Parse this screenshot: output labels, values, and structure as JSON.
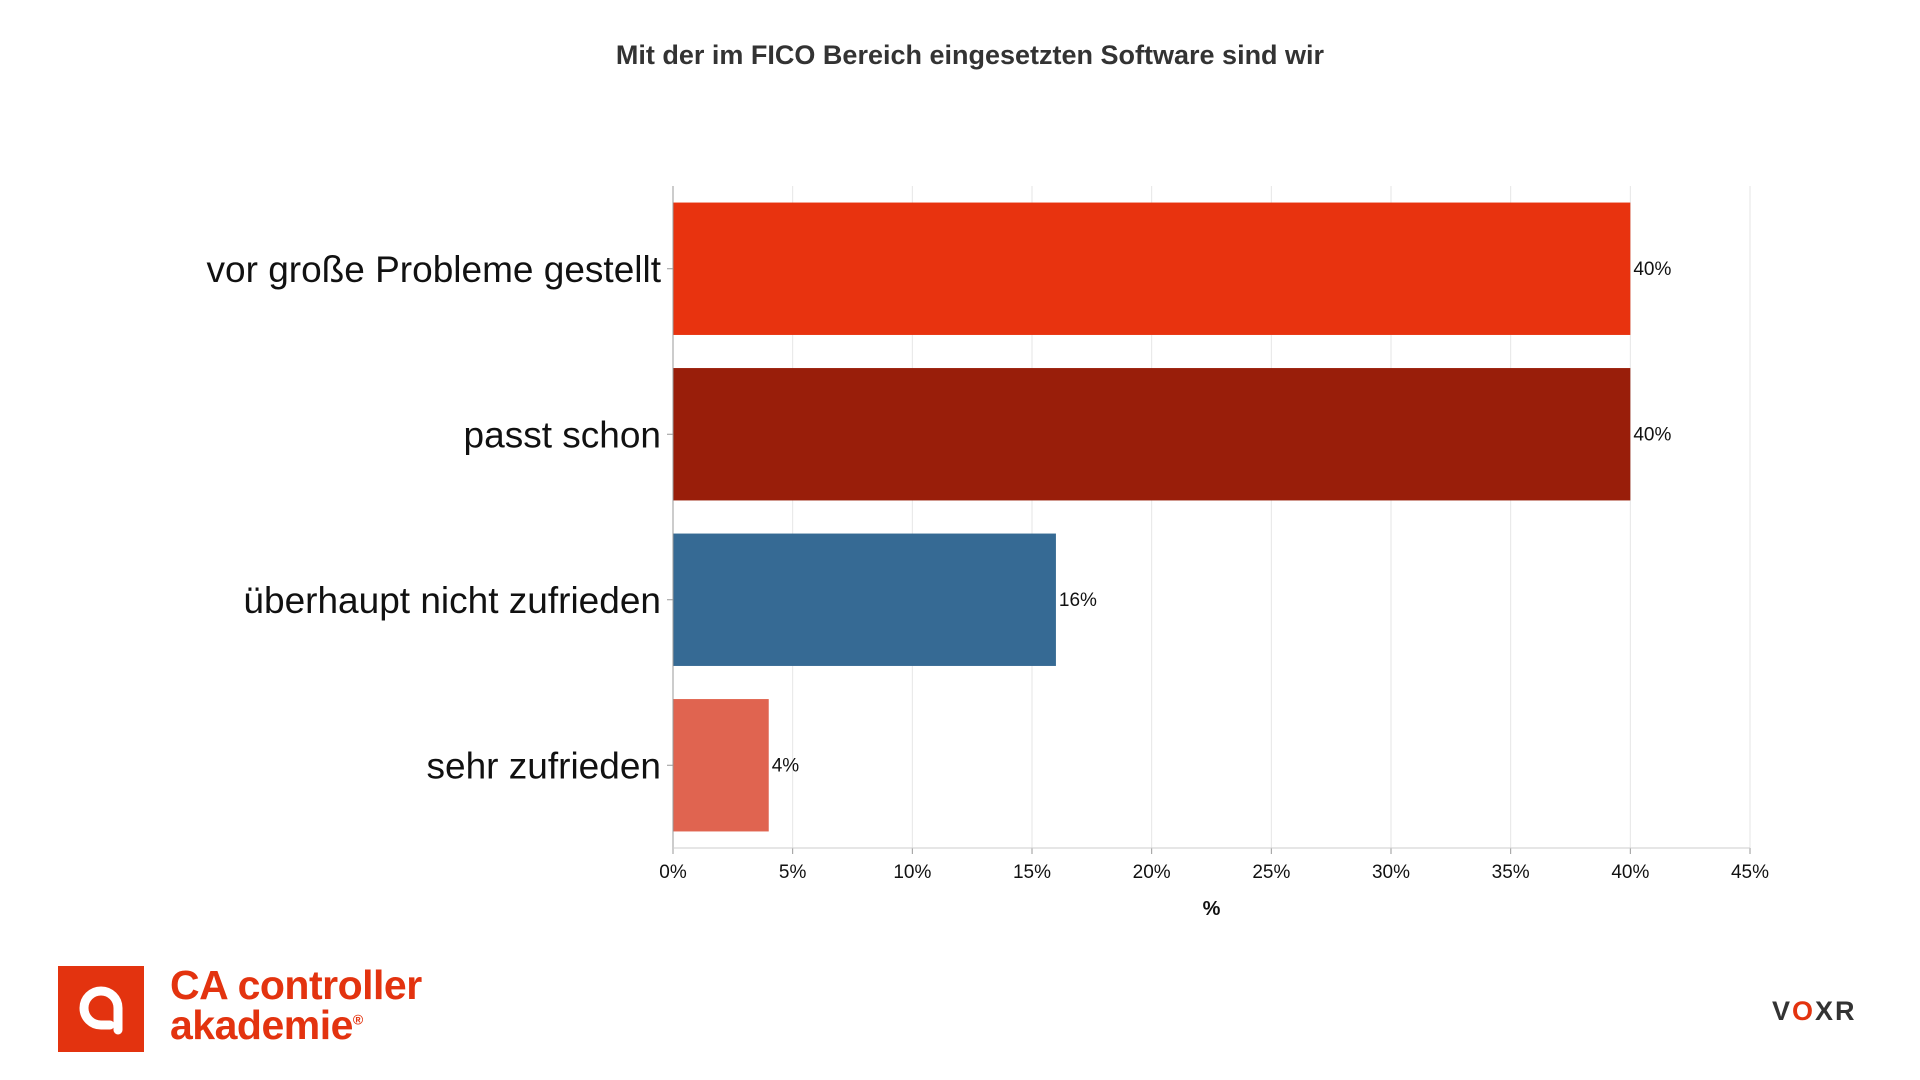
{
  "chart_data": {
    "type": "bar",
    "orientation": "horizontal",
    "title": "Mit der im FICO Bereich eingesetzten Software sind wir",
    "categories": [
      "vor große Probleme gestellt",
      "passt schon",
      "überhaupt nicht zufrieden",
      "sehr zufrieden"
    ],
    "values": [
      40,
      40,
      16,
      4
    ],
    "data_labels": [
      "40%",
      "40%",
      "16%",
      "4%"
    ],
    "bar_colors": [
      "#e8330f",
      "#991e0a",
      "#366a94",
      "#e06450"
    ],
    "xlabel": "%",
    "ylabel": "",
    "xlim": [
      0,
      45
    ],
    "xticks": [
      0,
      5,
      10,
      15,
      20,
      25,
      30,
      35,
      40,
      45
    ],
    "xtick_labels": [
      "0%",
      "5%",
      "10%",
      "15%",
      "20%",
      "25%",
      "30%",
      "35%",
      "40%",
      "45%"
    ],
    "grid": true,
    "legend": "none"
  },
  "logos": {
    "left_line1": "CA controller",
    "left_line2": "akademie",
    "left_registered": "®",
    "right_v": "V",
    "right_o": "O",
    "right_xr": "XR"
  },
  "colors": {
    "brand_red": "#e3330f",
    "text_dark": "#333333",
    "grid": "#e6e6e6",
    "axis": "#999999"
  }
}
